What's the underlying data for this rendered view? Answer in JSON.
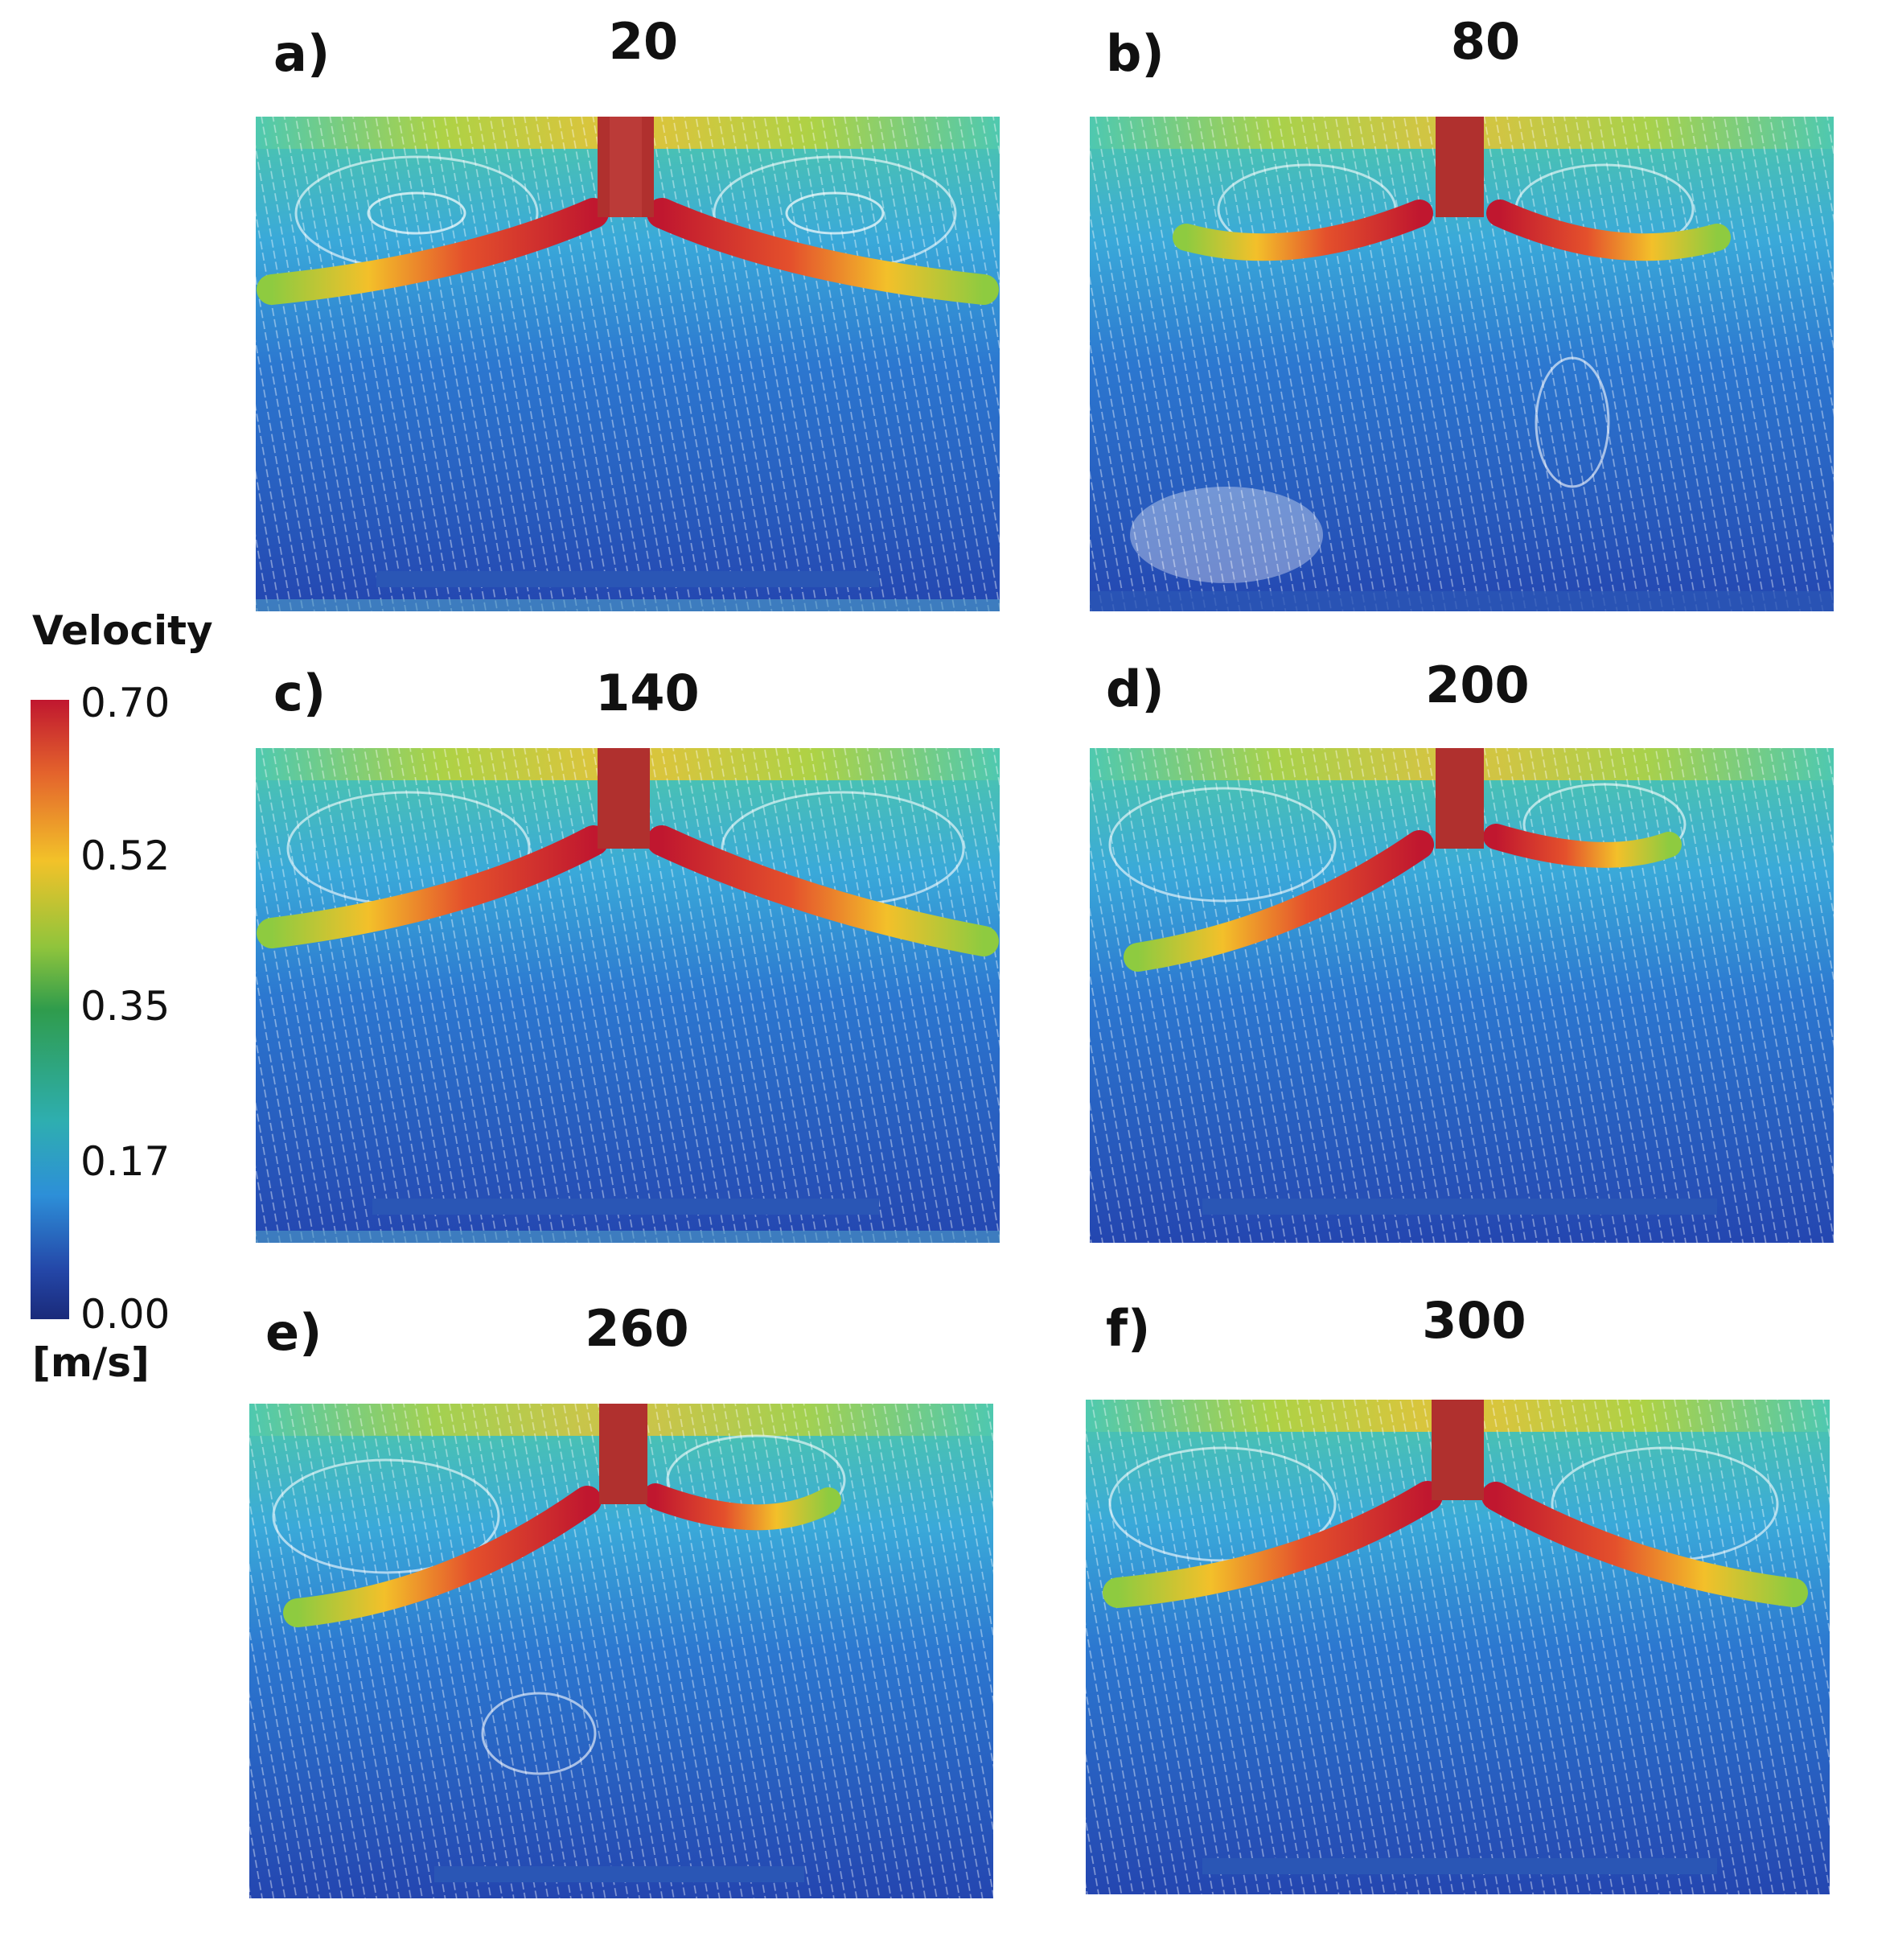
{
  "colorbar": {
    "title": "Velocity",
    "unit": "[m/s]",
    "ticks": [
      "0.70",
      "0.52",
      "0.35",
      "0.17",
      "0.00"
    ],
    "colors": [
      "#c0172f",
      "#f2c229",
      "#2f9c4c",
      "#2d8fd8",
      "#1a2a7a"
    ]
  },
  "panels": [
    {
      "letter": "a)",
      "time": "20"
    },
    {
      "letter": "b)",
      "time": "80"
    },
    {
      "letter": "c)",
      "time": "140"
    },
    {
      "letter": "d)",
      "time": "200"
    },
    {
      "letter": "e)",
      "time": "260"
    },
    {
      "letter": "f)",
      "time": "300"
    }
  ]
}
